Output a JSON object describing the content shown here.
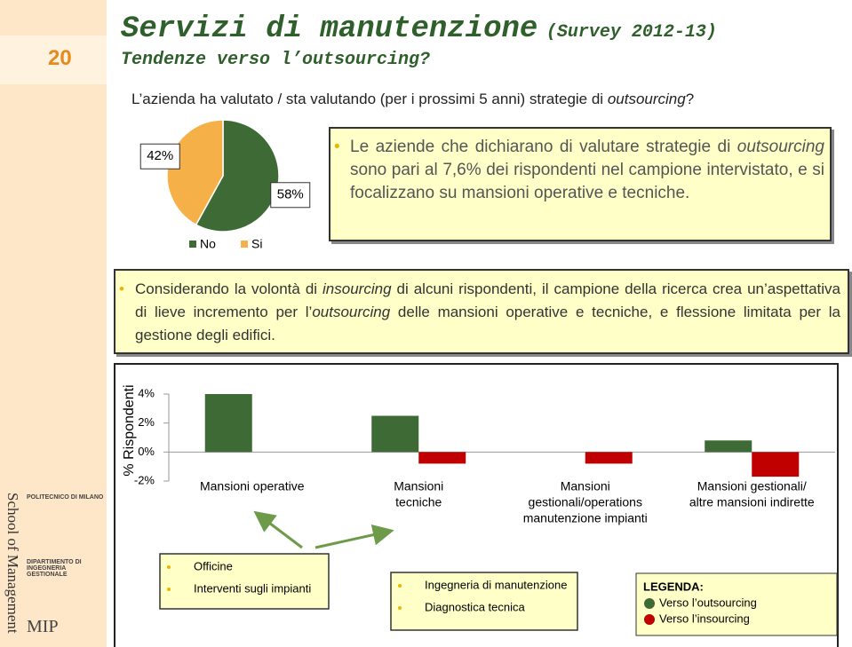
{
  "page_number": "20",
  "header": {
    "title": "Servizi di manutenzione",
    "title_note": "(Survey 2012-13)",
    "subtitle": "Tendenze verso l’outsourcing?"
  },
  "question": [
    "L’azienda ha valutato / sta valutando (per i prossimi 5 anni) strategie di ",
    "outsourcing",
    "?"
  ],
  "callout_1": [
    "Le aziende che dichiarano di valutare strategie di ",
    "outsourcing",
    " sono pari al 7,6% dei rispondenti nel campione intervistato, e si focalizzano su mansioni operative e tecniche."
  ],
  "callout_2": [
    "Considerando la volontà di ",
    "insourcing",
    " di alcuni rispondenti, il campione della ricerca crea un’aspettativa di lieve incremento per l’",
    "outsourcing",
    " delle mansioni operative e tecniche, e flessione limitata per la gestione degli edifici."
  ],
  "sidebar": {
    "school": "School of Management",
    "university": "POLITECNICO DI MILANO",
    "department": "DIPARTIMENTO DI INGEGNERIA GESTIONALE",
    "logo": "MIP"
  },
  "chart_data": [
    {
      "type": "pie",
      "categories": [
        "No",
        "Si"
      ],
      "values": [
        58,
        42
      ],
      "value_labels": [
        "58%",
        "42%"
      ],
      "colors": [
        "#3e6b35",
        "#f5b047"
      ]
    },
    {
      "type": "bar",
      "y_label": "% Rispondenti",
      "categories": [
        [
          "Mansioni operative"
        ],
        [
          "Mansioni",
          "tecniche"
        ],
        [
          "Mansioni",
          "gestionali/operations",
          "manutenzione impianti"
        ],
        [
          "Mansioni gestionali/",
          "altre mansioni indirette"
        ]
      ],
      "series": [
        {
          "name": "Verso l’outsourcing",
          "color": "#3e6b35",
          "values": [
            4,
            2.5,
            null,
            0.8
          ]
        },
        {
          "name": "Verso l’insourcing",
          "color": "#c00000",
          "values": [
            null,
            -0.8,
            -0.8,
            -1.7
          ]
        }
      ],
      "ylim": [
        -2,
        4
      ],
      "yticks": [
        {
          "value": 4,
          "label": "4%"
        },
        {
          "value": 2,
          "label": "2%"
        },
        {
          "value": 0,
          "label": "0%"
        },
        {
          "value": -2,
          "label": "-2%"
        }
      ],
      "legend_title": "LEGENDA:"
    }
  ],
  "boxes": [
    [
      "Officine",
      "Interventi sugli impianti"
    ],
    [
      "Ingegneria di manutenzione",
      "Diagnostica tecnica"
    ]
  ]
}
